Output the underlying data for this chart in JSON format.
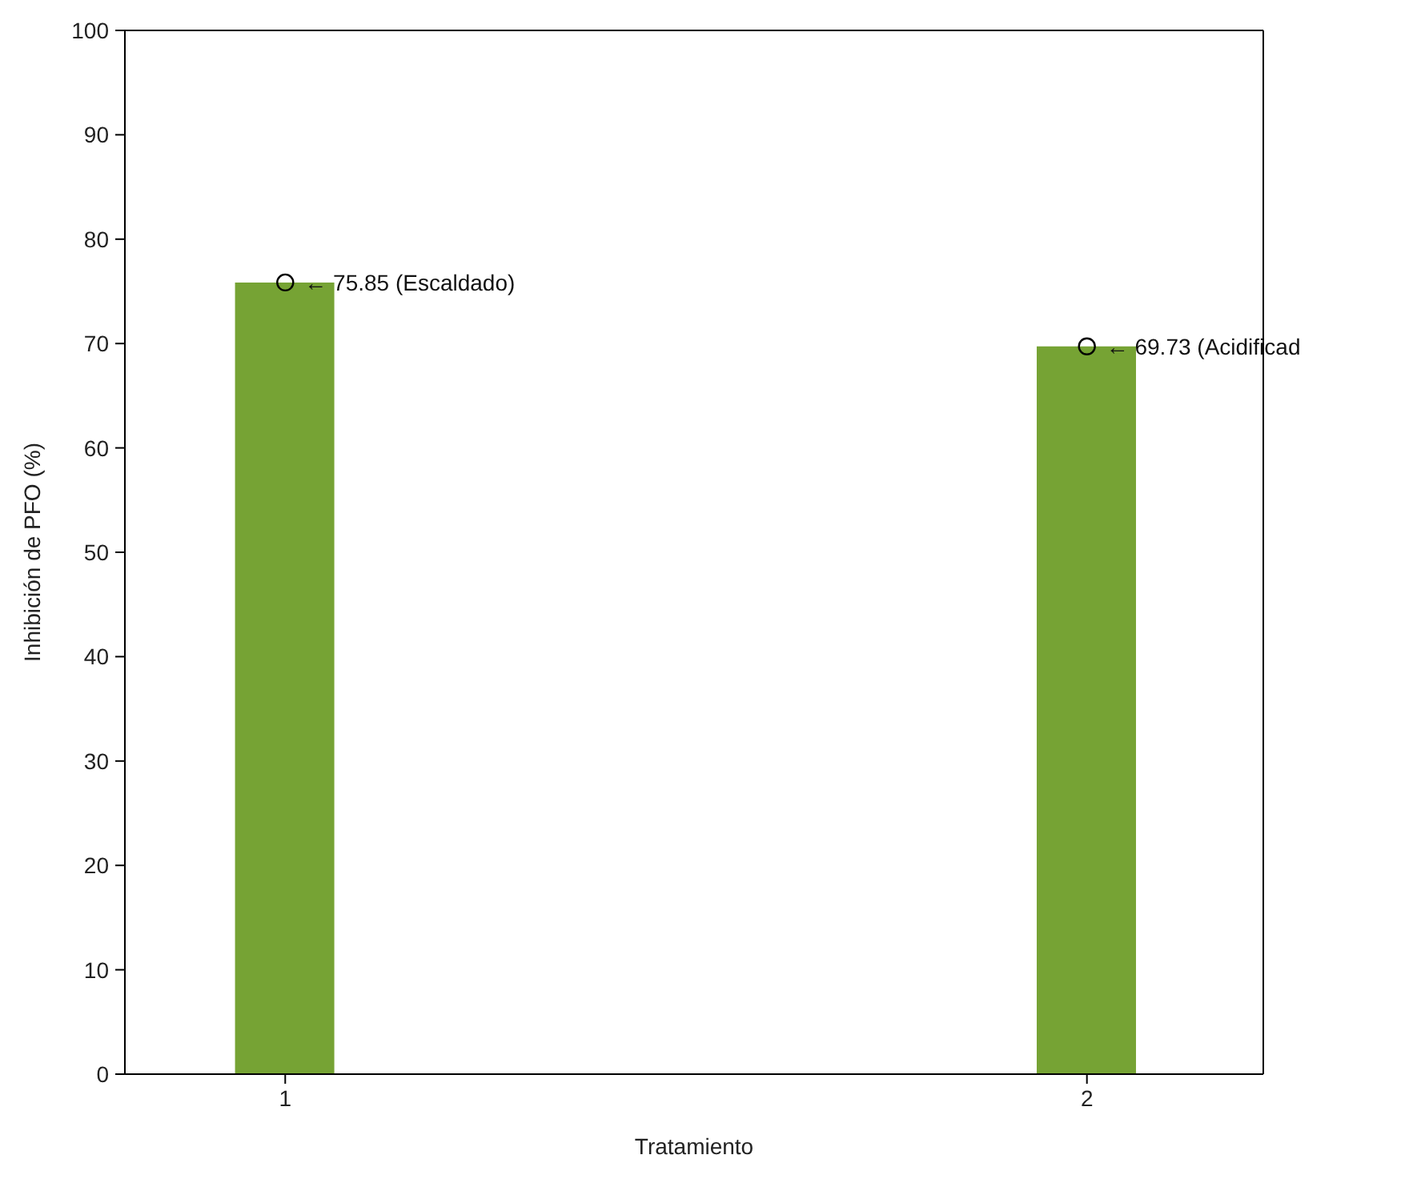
{
  "chart_data": {
    "type": "bar",
    "xlabel": "Tratamiento",
    "ylabel": "Inhibición de PFO (%)",
    "x": [
      1,
      2
    ],
    "xlim": [
      0.8,
      2.22
    ],
    "xticks": [
      1,
      2
    ],
    "ylim": [
      0,
      100
    ],
    "yticks": [
      0,
      10,
      20,
      30,
      40,
      50,
      60,
      70,
      80,
      90,
      100
    ],
    "grid": false,
    "series": [
      {
        "color": "#76a334",
        "values": [
          75.85,
          69.73
        ]
      },
      {
        "type": "scatter",
        "color": "#000000",
        "marker": "circle",
        "values": [
          75.85,
          69.73
        ]
      }
    ],
    "annotations": [
      {
        "text": "← 75.85 (Escaldado)",
        "x": 1,
        "y": 75.85
      },
      {
        "text": "← 69.73 (Acidificad",
        "x": 2,
        "y": 69.73
      }
    ]
  }
}
